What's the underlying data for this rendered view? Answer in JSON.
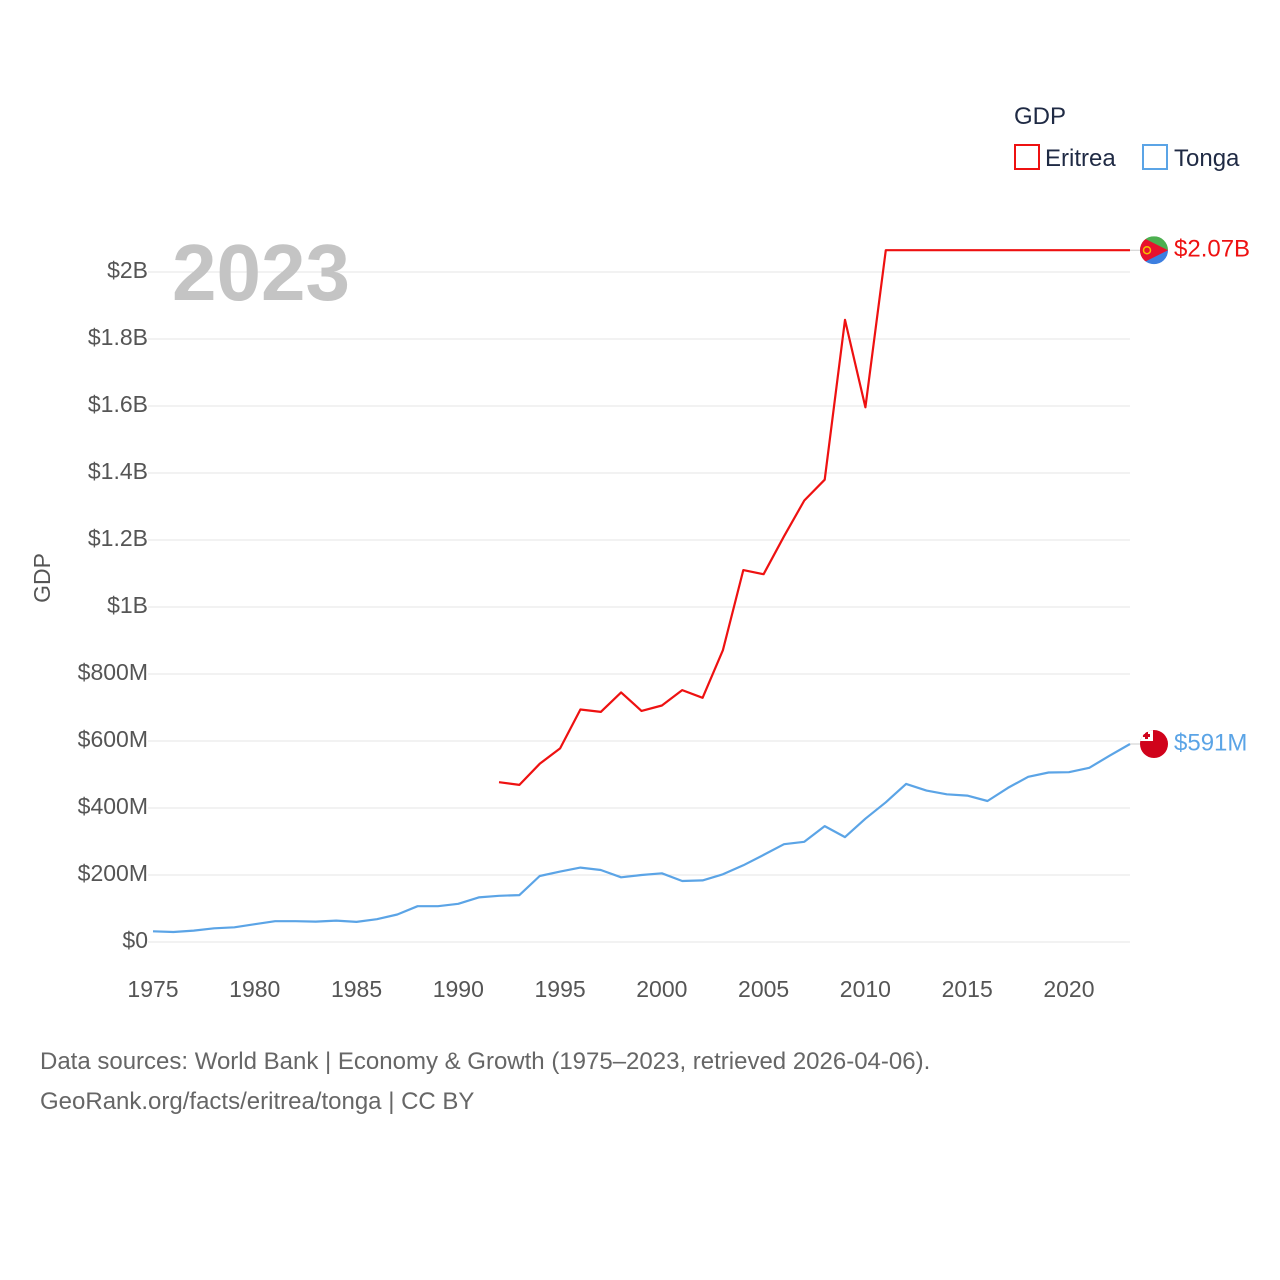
{
  "chart_data": {
    "type": "line",
    "current_year_label": "2023",
    "ylabel": "GDP",
    "legend": {
      "title": "GDP",
      "placement": "top-right"
    },
    "x_ticks": [
      1975,
      1980,
      1985,
      1990,
      1995,
      2000,
      2005,
      2010,
      2015,
      2020
    ],
    "xlim": [
      1975,
      2023
    ],
    "y_ticks": [
      {
        "value": 0,
        "label": "$0"
      },
      {
        "value": 200000000,
        "label": "$200M"
      },
      {
        "value": 400000000,
        "label": "$400M"
      },
      {
        "value": 600000000,
        "label": "$600M"
      },
      {
        "value": 800000000,
        "label": "$800M"
      },
      {
        "value": 1000000000,
        "label": "$1B"
      },
      {
        "value": 1200000000,
        "label": "$1.2B"
      },
      {
        "value": 1400000000,
        "label": "$1.4B"
      },
      {
        "value": 1600000000,
        "label": "$1.6B"
      },
      {
        "value": 1800000000,
        "label": "$1.8B"
      },
      {
        "value": 2000000000,
        "label": "$2B"
      }
    ],
    "ylim": [
      0,
      2000000000
    ],
    "series": [
      {
        "name": "Eritrea",
        "color": "#ee1111",
        "end_label": "$2.07B",
        "flag": "eritrea-flag",
        "x": [
          1992,
          1993,
          1994,
          1995,
          1996,
          1997,
          1998,
          1999,
          2000,
          2001,
          2002,
          2003,
          2004,
          2005,
          2006,
          2007,
          2008,
          2009,
          2010,
          2011,
          2012,
          2013,
          2014,
          2015,
          2016,
          2017,
          2018,
          2019,
          2020,
          2021,
          2022,
          2023
        ],
        "y": [
          477000000,
          469000000,
          532000000,
          578000000,
          694000000,
          687000000,
          745000000,
          690000000,
          706000000,
          752000000,
          729000000,
          871000000,
          1110000000,
          1098000000,
          1211000000,
          1318000000,
          1380000000,
          1857000000,
          1596000000,
          2065000000,
          2065000000,
          2065000000,
          2065000000,
          2065000000,
          2065000000,
          2065000000,
          2065000000,
          2065000000,
          2065000000,
          2065000000,
          2065000000,
          2065000000
        ]
      },
      {
        "name": "Tonga",
        "color": "#5ba4e6",
        "end_label": "$591M",
        "flag": "tonga-flag",
        "x": [
          1975,
          1976,
          1977,
          1978,
          1979,
          1980,
          1981,
          1982,
          1983,
          1984,
          1985,
          1986,
          1987,
          1988,
          1989,
          1990,
          1991,
          1992,
          1993,
          1994,
          1995,
          1996,
          1997,
          1998,
          1999,
          2000,
          2001,
          2002,
          2003,
          2004,
          2005,
          2006,
          2007,
          2008,
          2009,
          2010,
          2011,
          2012,
          2013,
          2014,
          2015,
          2016,
          2017,
          2018,
          2019,
          2020,
          2021,
          2022,
          2023
        ],
        "y": [
          32000000,
          30000000,
          34000000,
          41000000,
          44000000,
          53000000,
          62000000,
          62000000,
          61000000,
          64000000,
          60000000,
          68000000,
          82000000,
          107000000,
          107000000,
          114000000,
          133000000,
          138000000,
          140000000,
          197000000,
          210000000,
          222000000,
          215000000,
          193000000,
          200000000,
          205000000,
          182000000,
          184000000,
          202000000,
          229000000,
          260000000,
          292000000,
          299000000,
          346000000,
          313000000,
          368000000,
          417000000,
          472000000,
          452000000,
          441000000,
          437000000,
          421000000,
          460000000,
          493000000,
          506000000,
          507000000,
          520000000,
          556000000,
          591000000
        ]
      }
    ]
  },
  "footer": {
    "line1": "Data sources: World Bank | Economy & Growth (1975–2023, retrieved 2026-04-06).",
    "line2": "GeoRank.org/facts/eritrea/tonga | CC BY"
  }
}
